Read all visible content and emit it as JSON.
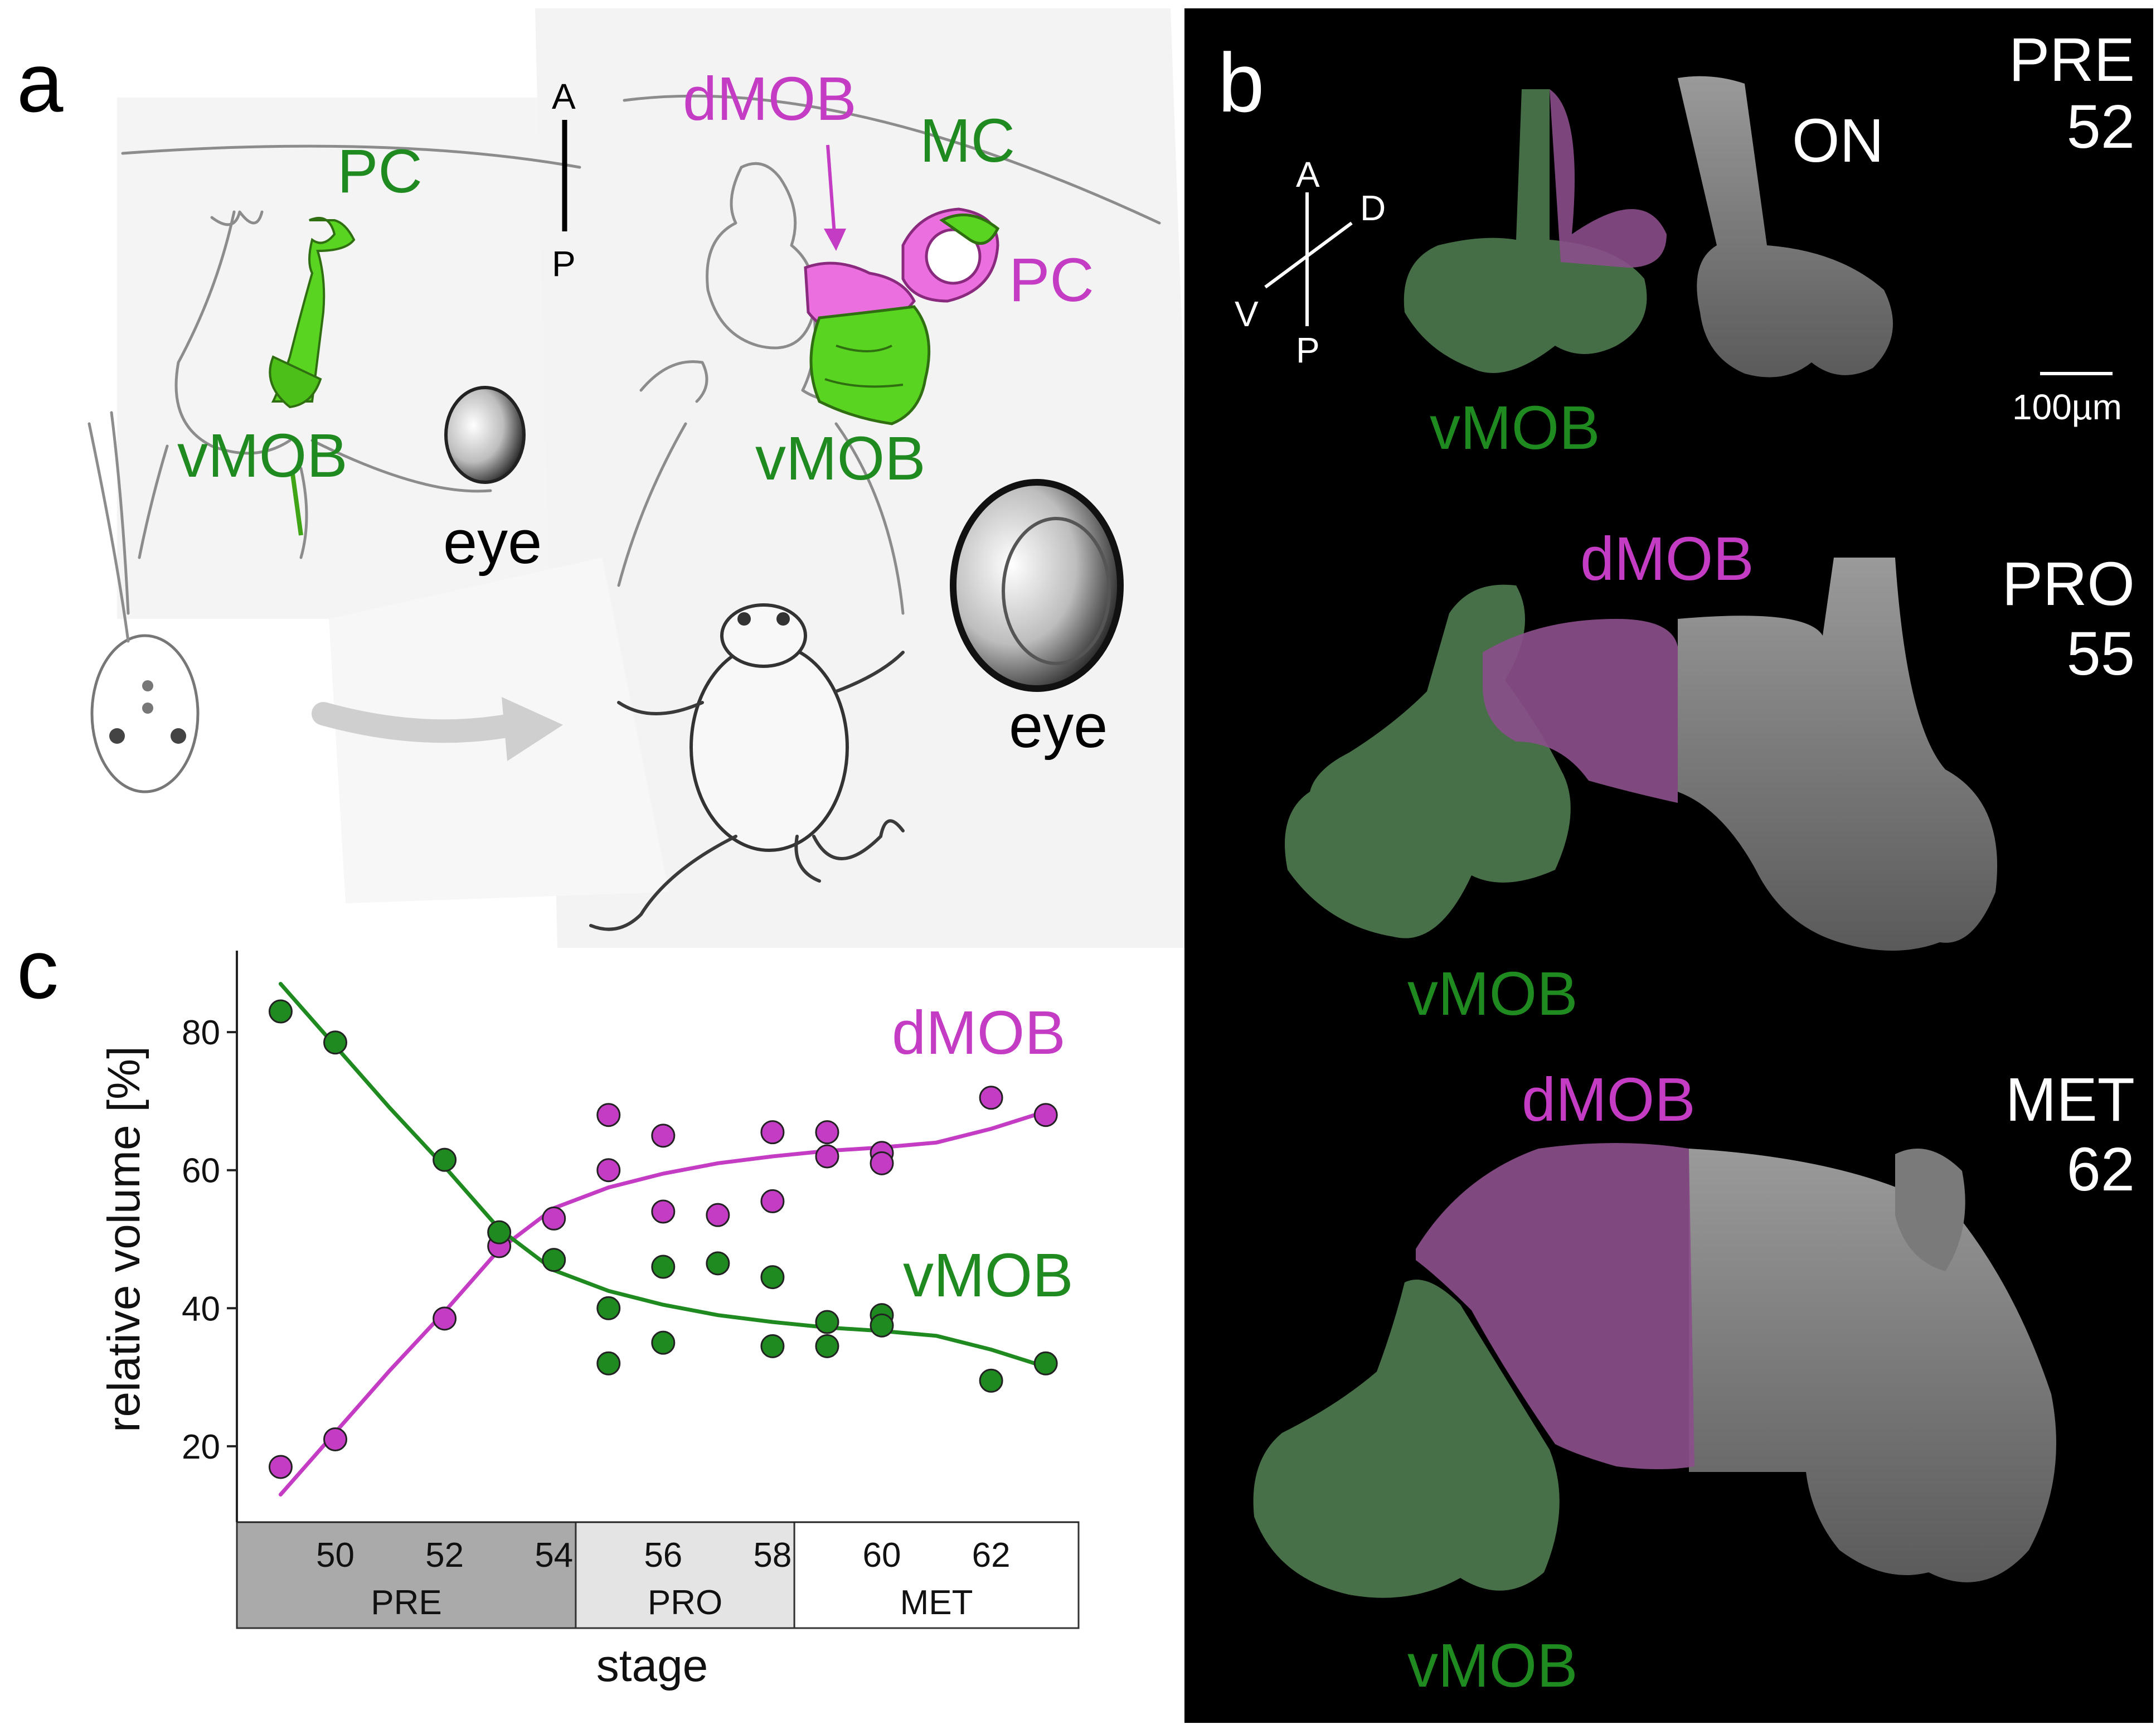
{
  "panels": {
    "a": {
      "letter": "a",
      "left_labels": {
        "pc": "PC",
        "vmob": "vMOB",
        "eye": "eye"
      },
      "orientation": {
        "anterior": "A",
        "posterior": "P"
      },
      "right_labels": {
        "dmob": "dMOB",
        "mc": "MC",
        "pc": "PC",
        "vmob": "vMOB",
        "eye": "eye"
      }
    },
    "b": {
      "letter": "b",
      "axes": {
        "anterior": "A",
        "posterior": "P",
        "dorsal": "D",
        "ventral": "V"
      },
      "scale_bar": "100µm",
      "rows": [
        {
          "stage_name": "PRE",
          "stage_num": "52",
          "labels": {
            "on": "ON",
            "vmob": "vMOB"
          }
        },
        {
          "stage_name": "PRO",
          "stage_num": "55",
          "labels": {
            "dmob": "dMOB",
            "vmob": "vMOB"
          }
        },
        {
          "stage_name": "MET",
          "stage_num": "62",
          "labels": {
            "dmob": "dMOB",
            "vmob": "vMOB"
          }
        }
      ]
    },
    "c": {
      "letter": "c"
    }
  },
  "colors": {
    "green": "#1f8a1f",
    "magenta": "#c43cc4",
    "bright_green": "#59d420",
    "bright_magenta": "#ec6fe0",
    "pre_band": "#aaaaaa",
    "pro_band": "#e4e4e4",
    "met_band": "#ffffff"
  },
  "chart_data": {
    "type": "scatter",
    "xlabel": "stage",
    "ylabel": "relative volume [%]",
    "xlim": [
      48.2,
      63.6
    ],
    "ylim": [
      9,
      91
    ],
    "x_ticks": [
      50,
      52,
      54,
      56,
      58,
      60,
      62
    ],
    "y_ticks": [
      20,
      40,
      60,
      80
    ],
    "grid": false,
    "stage_groups": [
      {
        "label": "PRE",
        "from": 48.2,
        "to": 54.4
      },
      {
        "label": "PRO",
        "from": 54.4,
        "to": 58.4
      },
      {
        "label": "MET",
        "from": 58.4,
        "to": 63.6
      }
    ],
    "series": [
      {
        "name": "dMOB",
        "color": "#c43cc4",
        "points": [
          [
            49,
            17
          ],
          [
            50,
            21
          ],
          [
            52,
            38.5
          ],
          [
            53,
            49
          ],
          [
            54,
            53
          ],
          [
            55,
            68
          ],
          [
            55,
            60
          ],
          [
            56,
            65
          ],
          [
            56,
            54
          ],
          [
            57,
            53.5
          ],
          [
            58,
            65.5
          ],
          [
            58,
            55.5
          ],
          [
            59,
            65.5
          ],
          [
            59,
            62
          ],
          [
            60,
            62.5
          ],
          [
            60,
            61
          ],
          [
            62,
            70.5
          ],
          [
            63,
            68
          ]
        ],
        "fit": [
          [
            49,
            13
          ],
          [
            50,
            22
          ],
          [
            51,
            31
          ],
          [
            52,
            39.5
          ],
          [
            53,
            48.5
          ],
          [
            54,
            54.5
          ],
          [
            55,
            57.5
          ],
          [
            56,
            59.5
          ],
          [
            57,
            61
          ],
          [
            58,
            62
          ],
          [
            59,
            62.8
          ],
          [
            60,
            63.3
          ],
          [
            61,
            64
          ],
          [
            62,
            66
          ],
          [
            63,
            68.5
          ]
        ]
      },
      {
        "name": "vMOB",
        "color": "#1f8a1f",
        "points": [
          [
            49,
            83
          ],
          [
            50,
            78.5
          ],
          [
            52,
            61.5
          ],
          [
            53,
            51
          ],
          [
            54,
            47
          ],
          [
            55,
            40
          ],
          [
            55,
            32
          ],
          [
            56,
            46
          ],
          [
            56,
            35
          ],
          [
            57,
            46.5
          ],
          [
            58,
            44.5
          ],
          [
            58,
            34.5
          ],
          [
            59,
            38
          ],
          [
            59,
            34.5
          ],
          [
            60,
            39
          ],
          [
            60,
            37.5
          ],
          [
            62,
            29.5
          ],
          [
            63,
            32
          ]
        ],
        "fit": [
          [
            49,
            87
          ],
          [
            50,
            78
          ],
          [
            51,
            69
          ],
          [
            52,
            60.5
          ],
          [
            53,
            51.5
          ],
          [
            54,
            45.5
          ],
          [
            55,
            42.5
          ],
          [
            56,
            40.5
          ],
          [
            57,
            39
          ],
          [
            58,
            38
          ],
          [
            59,
            37.2
          ],
          [
            60,
            36.7
          ],
          [
            61,
            36
          ],
          [
            62,
            34
          ],
          [
            63,
            31.5
          ]
        ]
      }
    ]
  }
}
